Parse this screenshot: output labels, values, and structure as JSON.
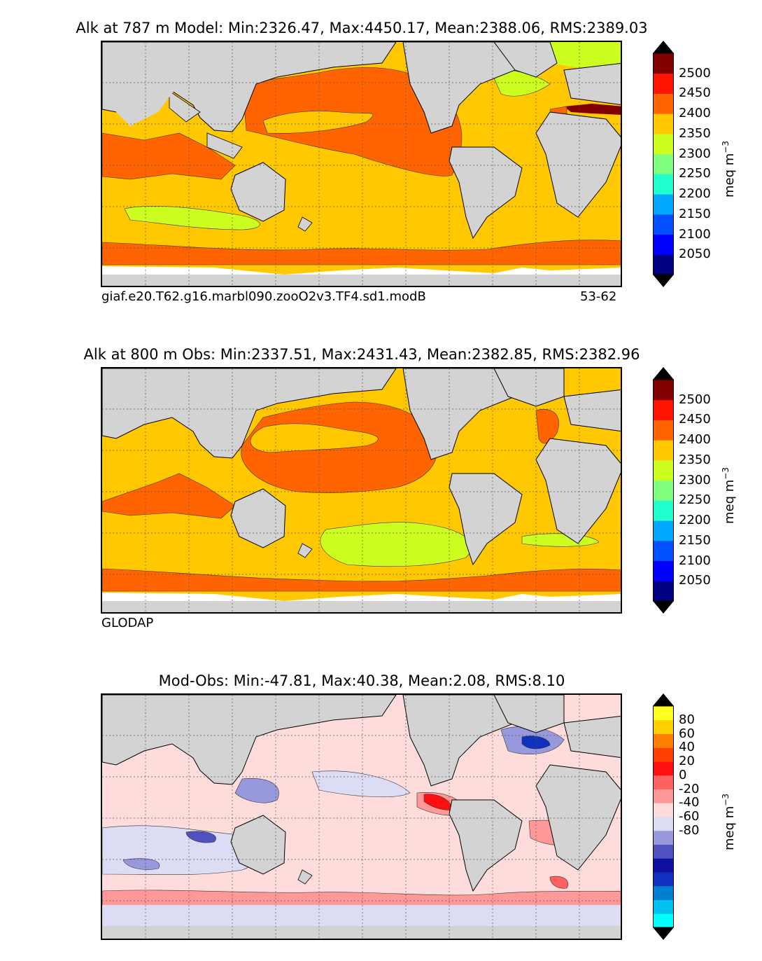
{
  "panels": [
    {
      "title": "Alk at 787 m Model: Min:2326.47, Max:4450.17, Mean:2388.06, RMS:2389.03",
      "caption_left": "giaf.e20.T62.g16.marbl090.zooO2v3.TF4.sd1.modB",
      "caption_right": "53-62",
      "colorbar": {
        "ticks": [
          "2500",
          "2450",
          "2400",
          "2350",
          "2300",
          "2250",
          "2200",
          "2150",
          "2100",
          "2050"
        ],
        "colors": [
          "#000080",
          "#0000ff",
          "#0050ff",
          "#00a8ff",
          "#20ffd0",
          "#80ff80",
          "#ccff20",
          "#ffc800",
          "#ff6400",
          "#ff1400",
          "#800000"
        ],
        "unit": "meq m",
        "unit_exp": "−3"
      }
    },
    {
      "title": "Alk at 800 m Obs: Min:2337.51, Max:2431.43, Mean:2382.85, RMS:2382.96",
      "caption_left": "GLODAP",
      "caption_right": "",
      "colorbar": {
        "ticks": [
          "2500",
          "2450",
          "2400",
          "2350",
          "2300",
          "2250",
          "2200",
          "2150",
          "2100",
          "2050"
        ],
        "colors": [
          "#000080",
          "#0000ff",
          "#0050ff",
          "#00a8ff",
          "#20ffd0",
          "#80ff80",
          "#ccff20",
          "#ffc800",
          "#ff6400",
          "#ff1400",
          "#800000"
        ],
        "unit": "meq m",
        "unit_exp": "−3"
      }
    },
    {
      "title": "Mod-Obs: Min:-47.81, Max:40.38, Mean:2.08, RMS:8.10",
      "caption_left": "",
      "caption_right": "",
      "colorbar": {
        "ticks": [
          "80",
          "60",
          "40",
          "20",
          "0",
          "-20",
          "-40",
          "-60",
          "-80"
        ],
        "colors": [
          "#00ffff",
          "#00c0f0",
          "#0080d0",
          "#1030c0",
          "#1010a0",
          "#5050c0",
          "#9898dd",
          "#dcdcf4",
          "#ffdcdc",
          "#ff9898",
          "#ff6060",
          "#ff1010",
          "#ff4000",
          "#ff8000",
          "#ffd000",
          "#ffff20"
        ],
        "unit": "meq m",
        "unit_exp": "−3"
      }
    }
  ],
  "palette": {
    "land": "#d3d3d3",
    "missing": "#ffffff"
  }
}
